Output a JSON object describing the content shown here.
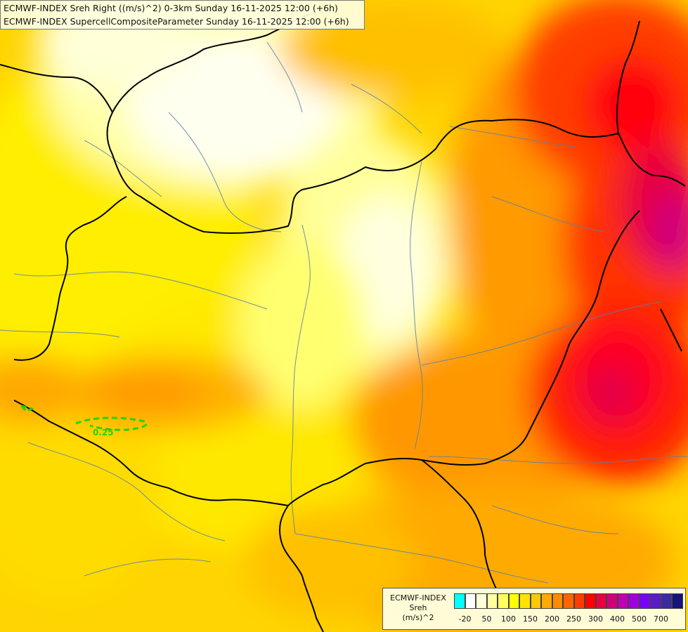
{
  "titles": {
    "line1": "ECMWF-INDEX Sreh Right ((m/s)^2) 0-3km Sunday 16-11-2025 12:00 (+6h)",
    "line2": "ECMWF-INDEX SupercellCompositeParameter Sunday 16-11-2025 12:00 (+6h)"
  },
  "contour_label": "0.25",
  "legend": {
    "line1": "ECMWF-INDEX",
    "line2": "Sreh",
    "line3": "(m/s)^2",
    "colors": [
      "#00ffff",
      "#ffffff",
      "#ffffd8",
      "#ffffa0",
      "#ffff60",
      "#ffff00",
      "#ffe400",
      "#ffc800",
      "#ffaa00",
      "#ff8c00",
      "#ff6400",
      "#ff3c00",
      "#ff0000",
      "#e80040",
      "#d0007c",
      "#c000b0",
      "#a000e0",
      "#7800ff",
      "#5a1cc8",
      "#3a2aa0",
      "#14147a"
    ],
    "ticks": [
      "-20",
      "50",
      "100",
      "150",
      "200",
      "250",
      "300",
      "400",
      "500",
      "700"
    ]
  }
}
